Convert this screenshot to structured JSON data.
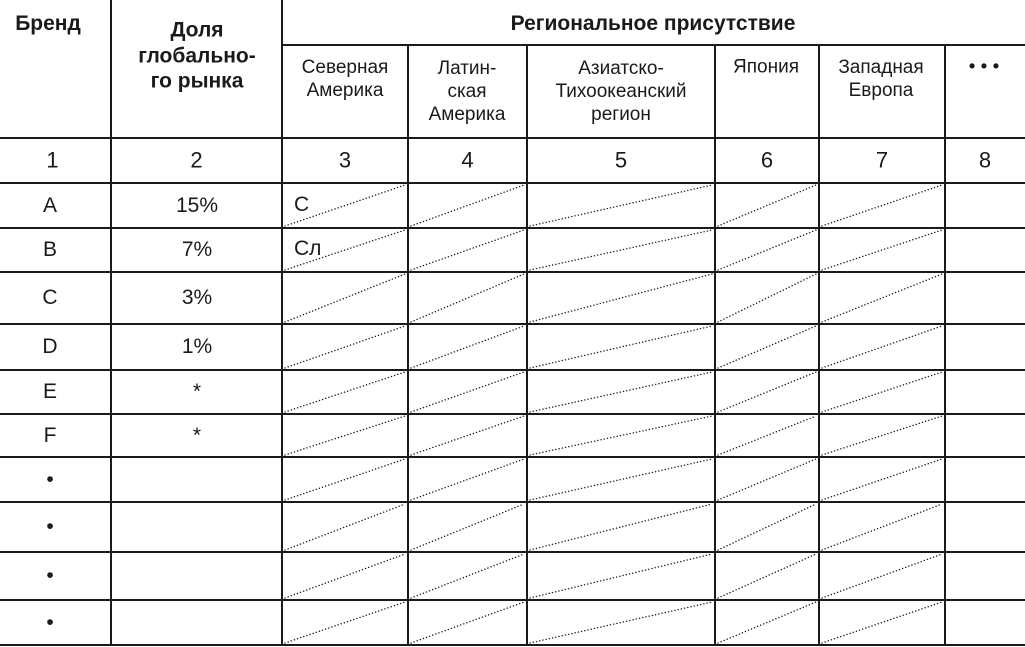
{
  "header": {
    "brand": "Бренд",
    "share": "Доля\nглобально-\nго рынка",
    "regional": "Региональное присутствие",
    "regions": [
      "Северная\nАмерика",
      "Латин-\nская\nАмерика",
      "Азиатско-\nТихоокеанский\nрегион",
      "Япония",
      "Западная\nЕвропа",
      "• • •"
    ]
  },
  "column_numbers": [
    "1",
    "2",
    "3",
    "4",
    "5",
    "6",
    "7",
    "8"
  ],
  "rows": [
    {
      "brand": "A",
      "share": "15%",
      "na_mark": "С"
    },
    {
      "brand": "B",
      "share": "7%",
      "na_mark": "Сл"
    },
    {
      "brand": "C",
      "share": "3%",
      "na_mark": ""
    },
    {
      "brand": "D",
      "share": "1%",
      "na_mark": ""
    },
    {
      "brand": "E",
      "share": "*",
      "na_mark": ""
    },
    {
      "brand": "F",
      "share": "*",
      "na_mark": ""
    },
    {
      "brand": "•",
      "share": "",
      "na_mark": ""
    },
    {
      "brand": "•",
      "share": "",
      "na_mark": ""
    },
    {
      "brand": "•",
      "share": "",
      "na_mark": ""
    },
    {
      "brand": "•",
      "share": "",
      "na_mark": ""
    }
  ]
}
